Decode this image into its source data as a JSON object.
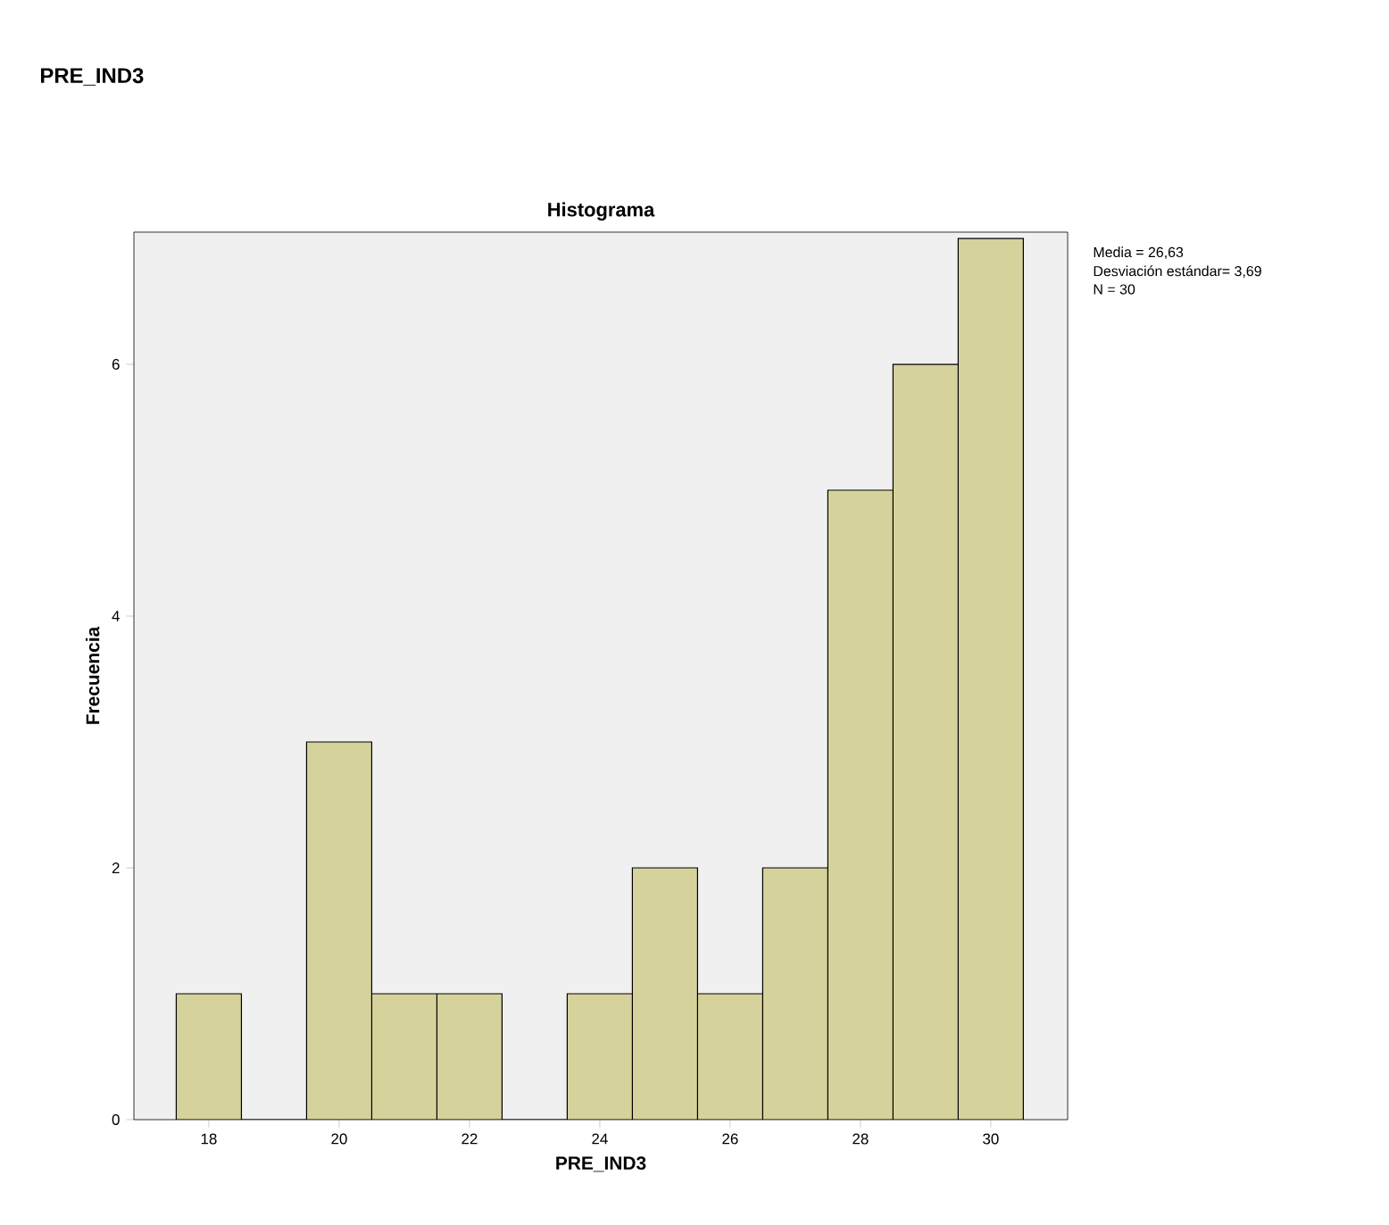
{
  "chart_data": {
    "type": "histogram",
    "title": "Histograma",
    "subtitle": "PRE_IND3",
    "xlabel": "PRE_IND3",
    "ylabel": "Frecuencia",
    "bins": [
      17.5,
      18.5,
      19.5,
      20.5,
      21.5,
      22.5,
      23.5,
      24.5,
      25.5,
      26.5,
      27.5,
      28.5,
      29.5,
      30.5
    ],
    "values": [
      1,
      0,
      3,
      1,
      1,
      0,
      1,
      2,
      1,
      2,
      5,
      6,
      7
    ],
    "color": "#d6d29c",
    "xlim": [
      16.85,
      31.18
    ],
    "ylim": [
      0,
      7.05
    ],
    "xticks": [
      18,
      20,
      22,
      24,
      26,
      28,
      30
    ],
    "yticks": [
      0,
      2,
      4,
      6
    ],
    "grid": false,
    "annotations": [
      "Media = 26,63",
      "Desviación estándar= 3,69",
      "N = 30"
    ]
  }
}
